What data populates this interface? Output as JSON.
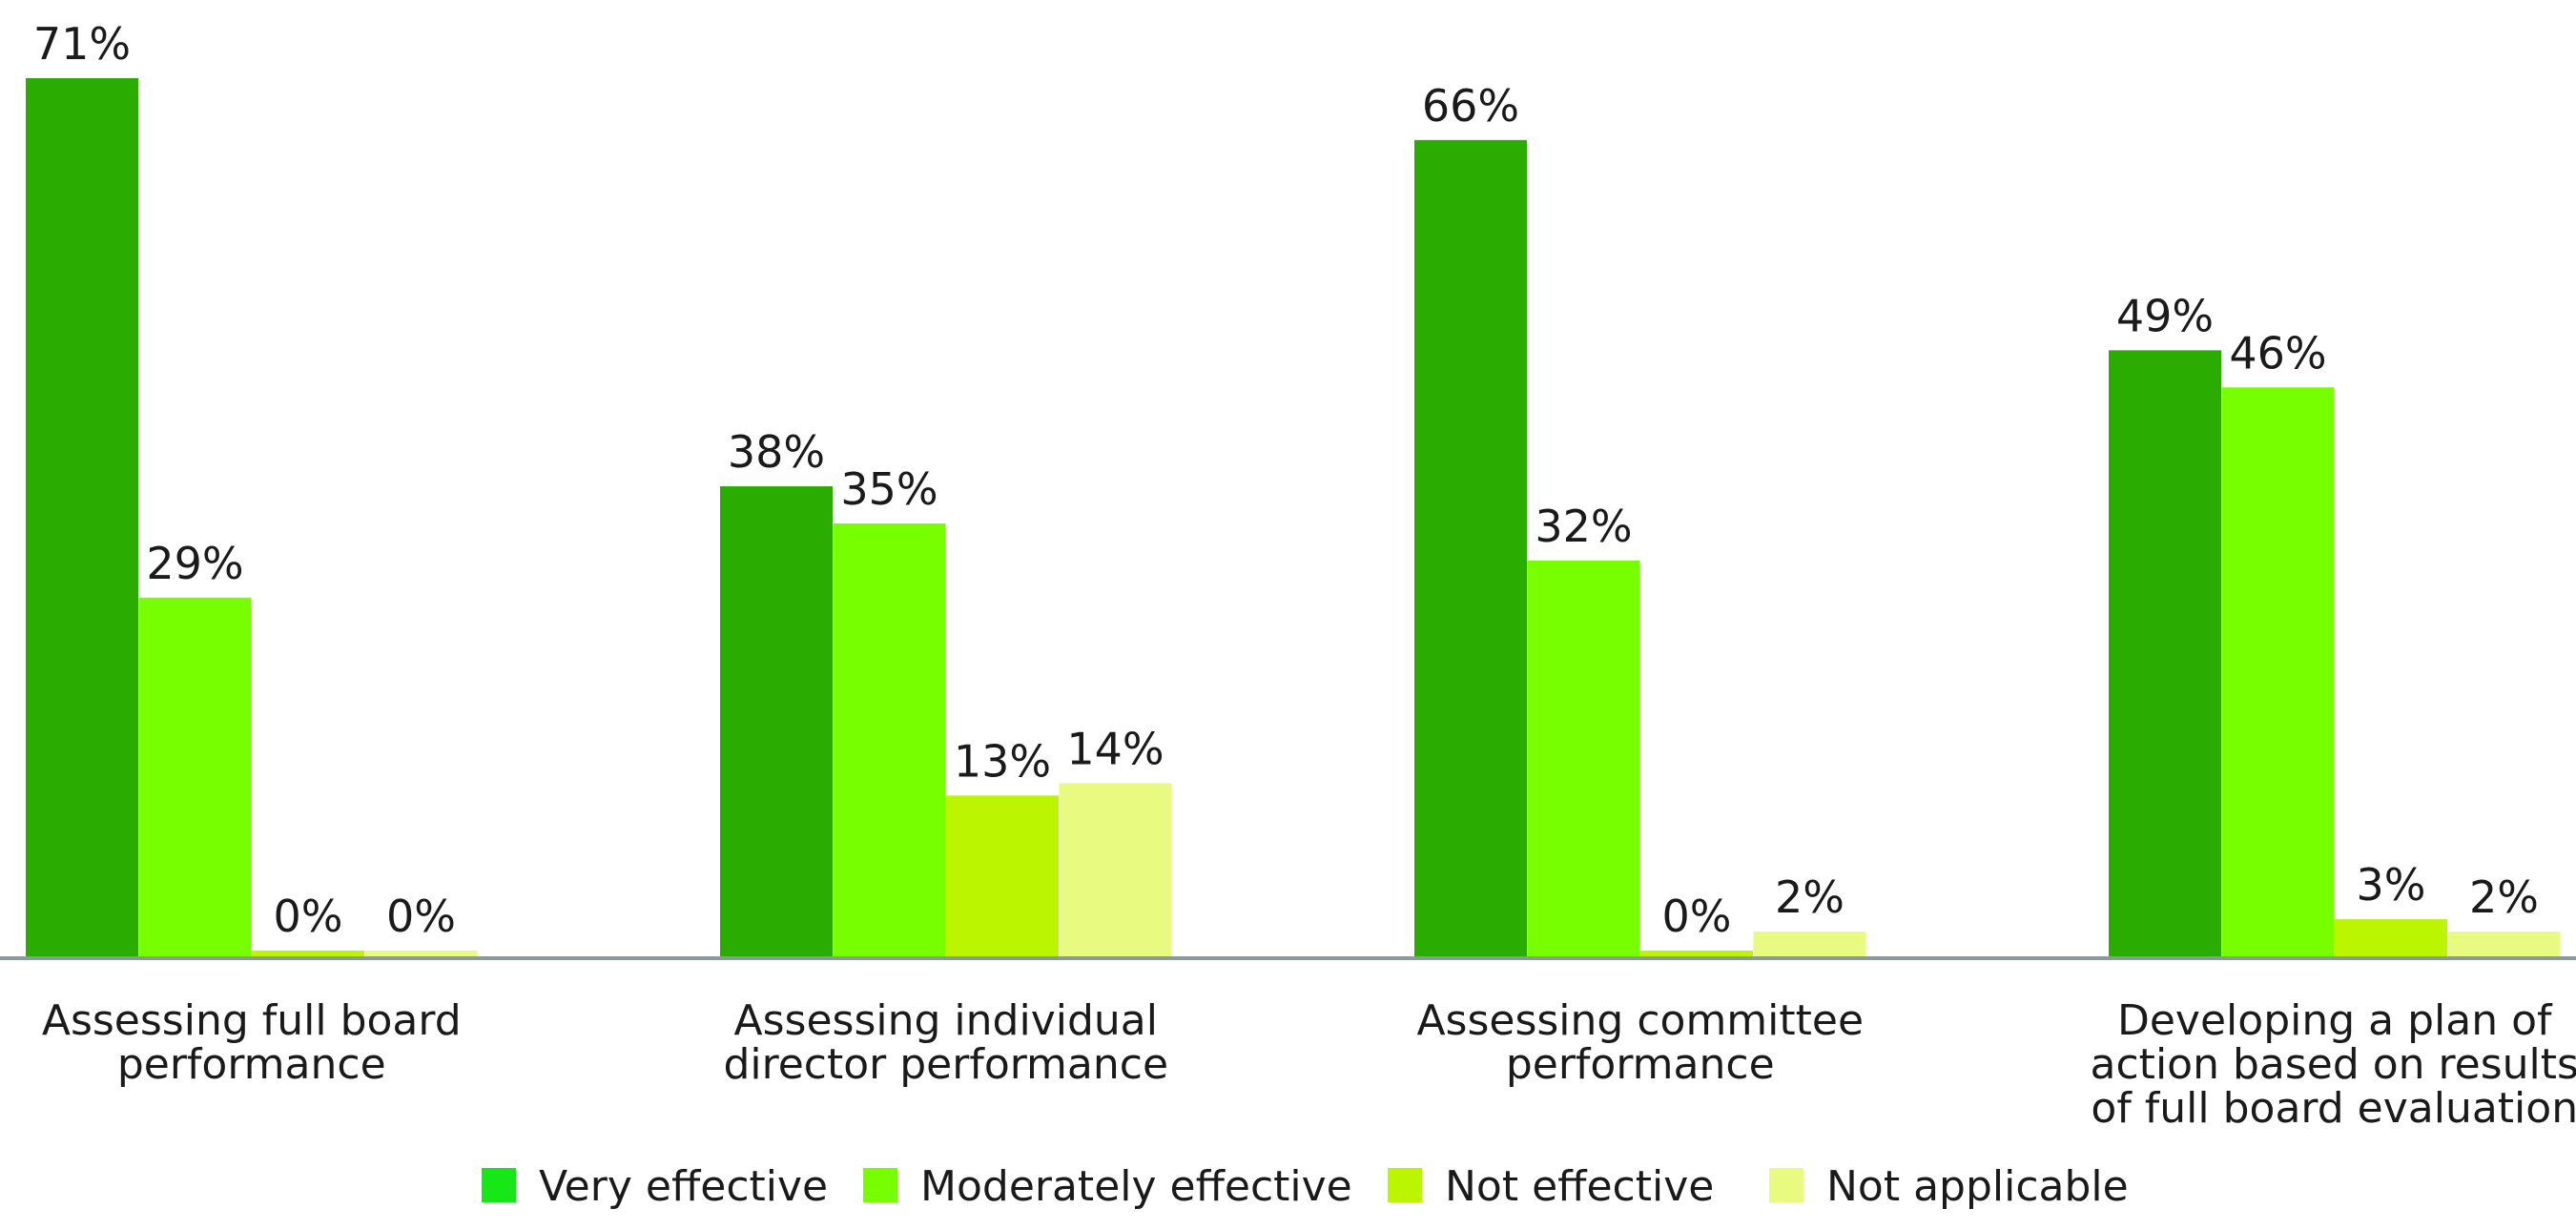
{
  "chart_data": {
    "type": "bar",
    "title": "",
    "xlabel": "",
    "ylabel": "",
    "ylim": [
      0,
      71
    ],
    "grid": false,
    "legend": "bottom",
    "categories": [
      [
        "Assessing full board",
        "performance"
      ],
      [
        "Assessing individual",
        "director performance"
      ],
      [
        "Assessing committee",
        "performance"
      ],
      [
        "Developing a plan of",
        "action based on results",
        "of full board evaluation"
      ]
    ],
    "series": [
      {
        "name": "Very effective",
        "values": [
          71,
          38,
          66,
          49
        ],
        "labels": [
          "71%",
          "38%",
          "66%",
          "49%"
        ]
      },
      {
        "name": "Moderately effective",
        "values": [
          29,
          35,
          32,
          46
        ],
        "labels": [
          "29%",
          "35%",
          "32%",
          "46%"
        ]
      },
      {
        "name": "Not effective",
        "values": [
          0,
          13,
          0,
          3
        ],
        "labels": [
          "0%",
          "13%",
          "0%",
          "3%"
        ]
      },
      {
        "name": "Not applicable",
        "values": [
          0,
          14,
          2,
          2
        ],
        "labels": [
          "0%",
          "14%",
          "2%",
          "2%"
        ]
      }
    ]
  },
  "colors": {
    "bars": [
      "#2aad00",
      "#77ff00",
      "#bbf500",
      "#e9fa80"
    ],
    "legend": [
      "#17e617",
      "#77ff00",
      "#bbf500",
      "#e9fa80"
    ],
    "axis": "#8a9a9a"
  }
}
